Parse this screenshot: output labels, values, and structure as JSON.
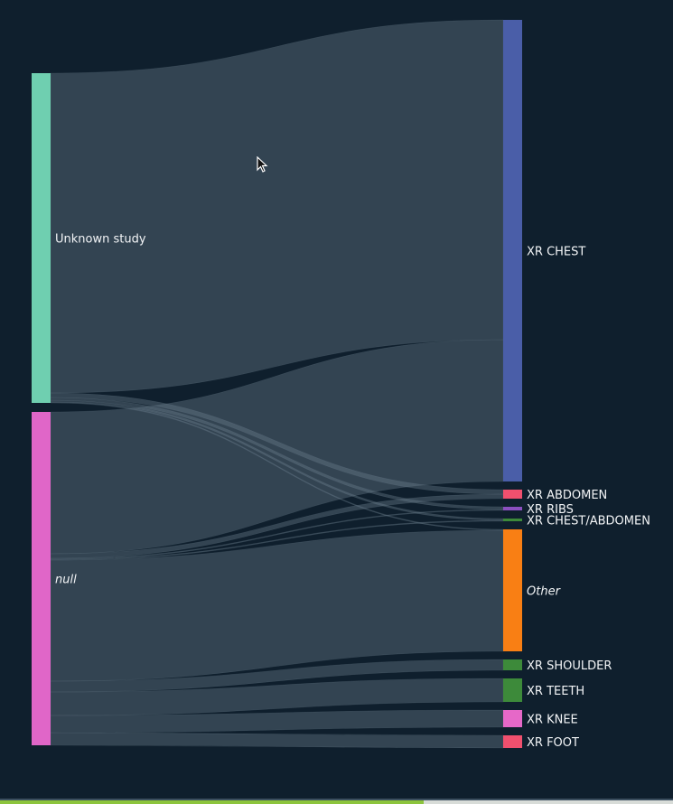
{
  "chart_data": {
    "type": "sankey",
    "sources": [
      {
        "name": "Unknown study",
        "color": "#6fcfb0",
        "italic": false
      },
      {
        "name": "null",
        "color": "#e066c8",
        "italic": true
      }
    ],
    "targets": [
      {
        "name": "XR CHEST",
        "color": "#4a5ea8",
        "italic": false
      },
      {
        "name": "XR ABDOMEN",
        "color": "#f0506e",
        "italic": false
      },
      {
        "name": "XR RIBS",
        "color": "#8b4fc0",
        "italic": false
      },
      {
        "name": "XR CHEST/ABDOMEN",
        "color": "#3d8a3a",
        "italic": false
      },
      {
        "name": "Other",
        "color": "#f97f14",
        "italic": true
      },
      {
        "name": "XR SHOULDER",
        "color": "#3d8a3a",
        "italic": false
      },
      {
        "name": "XR TEETH",
        "color": "#3d8a3a",
        "italic": false
      },
      {
        "name": "XR KNEE",
        "color": "#e668c8",
        "italic": false
      },
      {
        "name": "XR FOOT",
        "color": "#f0506e",
        "italic": false
      }
    ],
    "links": [
      {
        "source": "Unknown study",
        "target": "XR CHEST",
        "value": 354
      },
      {
        "source": "Unknown study",
        "target": "XR ABDOMEN",
        "value": 5
      },
      {
        "source": "Unknown study",
        "target": "XR RIBS",
        "value": 3
      },
      {
        "source": "Unknown study",
        "target": "XR CHEST/ABDOMEN",
        "value": 2
      },
      {
        "source": "Unknown study",
        "target": "Other",
        "value": 1
      },
      {
        "source": "null",
        "target": "XR CHEST",
        "value": 157
      },
      {
        "source": "null",
        "target": "XR ABDOMEN",
        "value": 5
      },
      {
        "source": "null",
        "target": "XR RIBS",
        "value": 1
      },
      {
        "source": "null",
        "target": "XR CHEST/ABDOMEN",
        "value": 1
      },
      {
        "source": "null",
        "target": "Other",
        "value": 134
      },
      {
        "source": "null",
        "target": "XR SHOULDER",
        "value": 12
      },
      {
        "source": "null",
        "target": "XR TEETH",
        "value": 26
      },
      {
        "source": "null",
        "target": "XR KNEE",
        "value": 19
      },
      {
        "source": "null",
        "target": "XR FOOT",
        "value": 14
      }
    ],
    "link_color": "#6e8291"
  },
  "progress": {
    "fraction": 0.63,
    "color": "#8cc43c"
  },
  "cursor_icon": "arrow-pointer"
}
